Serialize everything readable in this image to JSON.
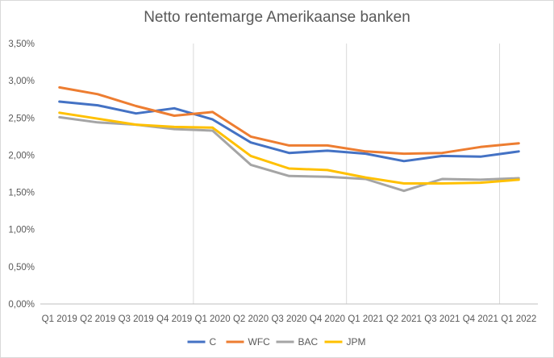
{
  "chart_data": {
    "type": "line",
    "title": "Netto rentemarge Amerikaanse banken",
    "xlabel": "",
    "ylabel": "",
    "ylim": [
      0,
      3.5
    ],
    "y_ticks": [
      "0,00%",
      "0,50%",
      "1,00%",
      "1,50%",
      "2,00%",
      "2,50%",
      "3,00%",
      "3,50%"
    ],
    "categories": [
      "Q1 2019",
      "Q2 2019",
      "Q3 2019",
      "Q4 2019",
      "Q1 2020",
      "Q2 2020",
      "Q3 2020",
      "Q4 2020",
      "Q1 2021",
      "Q2 2021",
      "Q3 2021",
      "Q4 2021",
      "Q1 2022"
    ],
    "grid": "vertical lines at Q1 of each year",
    "legend_position": "bottom",
    "series": [
      {
        "name": "C",
        "color": "#4472c4",
        "values": [
          2.72,
          2.67,
          2.56,
          2.63,
          2.48,
          2.17,
          2.03,
          2.06,
          2.02,
          1.92,
          1.99,
          1.98,
          2.05
        ]
      },
      {
        "name": "WFC",
        "color": "#ed7d31",
        "values": [
          2.91,
          2.82,
          2.66,
          2.53,
          2.58,
          2.25,
          2.13,
          2.13,
          2.05,
          2.02,
          2.03,
          2.11,
          2.16
        ]
      },
      {
        "name": "BAC",
        "color": "#a5a5a5",
        "values": [
          2.51,
          2.44,
          2.41,
          2.35,
          2.33,
          1.87,
          1.72,
          1.71,
          1.68,
          1.52,
          1.68,
          1.67,
          1.69
        ]
      },
      {
        "name": "JPM",
        "color": "#ffc000",
        "values": [
          2.57,
          2.49,
          2.41,
          2.38,
          2.37,
          1.99,
          1.82,
          1.8,
          1.7,
          1.62,
          1.62,
          1.63,
          1.67
        ]
      }
    ]
  }
}
